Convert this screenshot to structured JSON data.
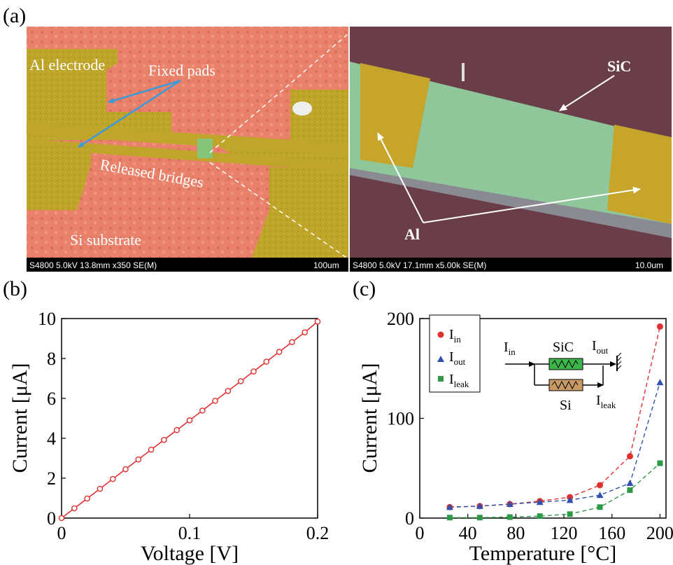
{
  "panels": {
    "a": "(a)",
    "b": "(b)",
    "c": "(c)"
  },
  "sem_left": {
    "labels": {
      "al_electrode": "Al electrode",
      "fixed_pads": "Fixed pads",
      "released_bridges": "Released bridges",
      "si_substrate": "Si substrate"
    },
    "info_bar": "S4800 5.0kV 13.8mm x350 SE(M)",
    "scale": "100um"
  },
  "sem_right": {
    "labels": {
      "sic": "SiC",
      "al": "Al"
    },
    "info_bar": "S4800 5.0kV 17.1mm x5.00k SE(M)",
    "scale": "10.0um"
  },
  "colors": {
    "substrate": "#e8806a",
    "electrode": "#bfa62a",
    "bridge": "#86c47a",
    "right_bg": "#6a3e48",
    "sic_green": "#8fc79a",
    "arrow_blue": "#3a9ad9",
    "red": "#e03030",
    "blue": "#3050b0",
    "green": "#2e9a48",
    "circuit_green": "#3cb54a",
    "circuit_brown": "#c79a66"
  },
  "chart_data": [
    {
      "type": "line",
      "xlabel": "Voltage [V]",
      "ylabel": "Current [μA]",
      "xlim": [
        0,
        0.2
      ],
      "ylim": [
        0,
        10
      ],
      "xticks": [
        0,
        0.1,
        0.2
      ],
      "xtick_labels": [
        "0",
        "0.1",
        "0.2"
      ],
      "yticks": [
        0,
        2,
        4,
        6,
        8,
        10
      ],
      "ytick_labels": [
        "0",
        "2",
        "4",
        "6",
        "8",
        "10"
      ],
      "series": [
        {
          "x": [
            0,
            0.01,
            0.02,
            0.03,
            0.04,
            0.05,
            0.06,
            0.07,
            0.08,
            0.09,
            0.1,
            0.11,
            0.12,
            0.13,
            0.14,
            0.15,
            0.16,
            0.17,
            0.18,
            0.19,
            0.2
          ],
          "y": [
            0.0,
            0.49,
            0.98,
            1.47,
            1.96,
            2.45,
            2.94,
            3.43,
            3.92,
            4.41,
            4.9,
            5.39,
            5.88,
            6.37,
            6.86,
            7.35,
            7.84,
            8.33,
            8.82,
            9.31,
            9.85
          ]
        }
      ]
    },
    {
      "type": "scatter",
      "xlabel": "Temperature [°C]",
      "ylabel": "Current [μA]",
      "xlim": [
        0,
        205
      ],
      "ylim": [
        0,
        200
      ],
      "xticks": [
        0,
        40,
        80,
        120,
        160,
        200
      ],
      "xtick_labels": [
        "0",
        "40",
        "80",
        "120",
        "160",
        "200"
      ],
      "yticks": [
        0,
        100,
        200
      ],
      "ytick_labels": [
        "0",
        "100",
        "200"
      ],
      "legend": "top-left",
      "series": [
        {
          "name": "I_in",
          "marker": "circle",
          "x": [
            25,
            50,
            75,
            100,
            125,
            150,
            175,
            200
          ],
          "y": [
            11,
            12,
            14,
            17,
            21,
            33,
            62,
            192
          ]
        },
        {
          "name": "I_out",
          "marker": "triangle",
          "x": [
            25,
            50,
            75,
            100,
            125,
            150,
            175,
            200
          ],
          "y": [
            11,
            12,
            14,
            16,
            18,
            23,
            35,
            136
          ]
        },
        {
          "name": "I_leak",
          "marker": "square",
          "x": [
            25,
            50,
            75,
            100,
            125,
            150,
            175,
            200
          ],
          "y": [
            0.5,
            0.5,
            1,
            2,
            4,
            11,
            28,
            55
          ]
        }
      ],
      "legend_entries": [
        {
          "main": "I",
          "sub": "in"
        },
        {
          "main": "I",
          "sub": "out"
        },
        {
          "main": "I",
          "sub": "leak"
        }
      ],
      "inset_circuit": {
        "i_in": {
          "main": "I",
          "sub": "in"
        },
        "i_out": {
          "main": "I",
          "sub": "out"
        },
        "i_leak": {
          "main": "I",
          "sub": "leak"
        },
        "sic": "SiC",
        "si": "Si"
      }
    }
  ]
}
